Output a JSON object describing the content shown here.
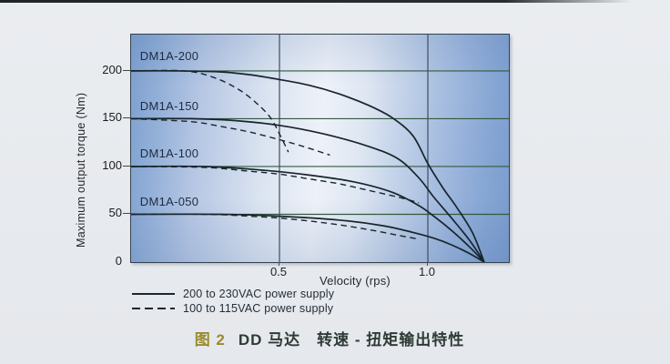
{
  "figure": {
    "caption": {
      "label": "图 2",
      "title": "DD 马达　转速 - 扭矩输出特性"
    }
  },
  "chart_data": {
    "type": "line",
    "xlabel": "Velocity (rps)",
    "ylabel": "Maximum output torque (Nm)",
    "xlim": [
      0,
      1.273
    ],
    "ylim": [
      0,
      238
    ],
    "grid": true,
    "xticks": [
      {
        "v": 0.5,
        "label": "0.5"
      },
      {
        "v": 1.0,
        "label": "1.0"
      }
    ],
    "yticks": [
      {
        "t": 200,
        "label": "200"
      },
      {
        "t": 150,
        "label": "150"
      },
      {
        "t": 100,
        "label": "100"
      },
      {
        "t": 50,
        "label": "50"
      },
      {
        "t": 0,
        "label": "0"
      }
    ],
    "colors": {
      "curve": "#18252c",
      "grid_h": "#33593f",
      "grid_v": "#3e4d61",
      "plot_border": "#35434f",
      "caption_label": "#9a8a2b"
    },
    "series": [
      {
        "name": "DM1A-200",
        "supply": "200 to 230VAC",
        "style": "solid",
        "points": [
          [
            0,
            200
          ],
          [
            0.15,
            200
          ],
          [
            0.3,
            199
          ],
          [
            0.4,
            196
          ],
          [
            0.5,
            191
          ],
          [
            0.6,
            185
          ],
          [
            0.7,
            176
          ],
          [
            0.8,
            164
          ],
          [
            0.88,
            151
          ],
          [
            0.95,
            132
          ],
          [
            1.0,
            103
          ],
          [
            1.05,
            78
          ],
          [
            1.1,
            56
          ],
          [
            1.15,
            31
          ],
          [
            1.19,
            0
          ]
        ]
      },
      {
        "name": "DM1A-150",
        "supply": "200 to 230VAC",
        "style": "solid",
        "points": [
          [
            0,
            150
          ],
          [
            0.2,
            150
          ],
          [
            0.35,
            148
          ],
          [
            0.5,
            143
          ],
          [
            0.65,
            134
          ],
          [
            0.8,
            121
          ],
          [
            0.9,
            108
          ],
          [
            0.97,
            88
          ],
          [
            1.02,
            68
          ],
          [
            1.08,
            46
          ],
          [
            1.14,
            23
          ],
          [
            1.19,
            0
          ]
        ]
      },
      {
        "name": "DM1A-100",
        "supply": "200 to 230VAC",
        "style": "solid",
        "points": [
          [
            0,
            100
          ],
          [
            0.25,
            100
          ],
          [
            0.45,
            96
          ],
          [
            0.6,
            91
          ],
          [
            0.75,
            84
          ],
          [
            0.88,
            73
          ],
          [
            0.97,
            59
          ],
          [
            1.02,
            48
          ],
          [
            1.08,
            33
          ],
          [
            1.14,
            16
          ],
          [
            1.19,
            0
          ]
        ]
      },
      {
        "name": "DM1A-050",
        "supply": "200 to 230VAC",
        "style": "solid",
        "points": [
          [
            0,
            50
          ],
          [
            0.3,
            50
          ],
          [
            0.5,
            48
          ],
          [
            0.7,
            44
          ],
          [
            0.85,
            38
          ],
          [
            0.95,
            31
          ],
          [
            1.02,
            25
          ],
          [
            1.08,
            18
          ],
          [
            1.14,
            9
          ],
          [
            1.19,
            0
          ]
        ]
      },
      {
        "name": "DM1A-200",
        "supply": "100 to 115VAC",
        "style": "dashed",
        "points": [
          [
            0,
            200
          ],
          [
            0.18,
            200
          ],
          [
            0.28,
            193
          ],
          [
            0.36,
            181
          ],
          [
            0.42,
            167
          ],
          [
            0.47,
            151
          ],
          [
            0.5,
            134
          ],
          [
            0.53,
            115
          ]
        ]
      },
      {
        "name": "DM1A-150",
        "supply": "100 to 115VAC",
        "style": "dashed",
        "points": [
          [
            0,
            150
          ],
          [
            0.2,
            147
          ],
          [
            0.3,
            142
          ],
          [
            0.4,
            136
          ],
          [
            0.5,
            128
          ],
          [
            0.58,
            121
          ],
          [
            0.67,
            112
          ]
        ]
      },
      {
        "name": "DM1A-100",
        "supply": "100 to 115VAC",
        "style": "dashed",
        "points": [
          [
            0,
            100
          ],
          [
            0.25,
            99
          ],
          [
            0.4,
            95
          ],
          [
            0.5,
            92
          ],
          [
            0.6,
            87
          ],
          [
            0.7,
            82
          ],
          [
            0.8,
            75
          ],
          [
            0.9,
            68
          ],
          [
            0.97,
            62
          ]
        ]
      },
      {
        "name": "DM1A-050",
        "supply": "100 to 115VAC",
        "style": "dashed",
        "points": [
          [
            0,
            50
          ],
          [
            0.25,
            50
          ],
          [
            0.4,
            48
          ],
          [
            0.5,
            46
          ],
          [
            0.6,
            43
          ],
          [
            0.7,
            39
          ],
          [
            0.8,
            34
          ],
          [
            0.9,
            28
          ],
          [
            0.97,
            24
          ]
        ]
      }
    ],
    "series_labels": [
      {
        "text": "DM1A-200",
        "v": 0.03,
        "t": 216
      },
      {
        "text": "DM1A-150",
        "v": 0.03,
        "t": 164
      },
      {
        "text": "DM1A-100",
        "v": 0.03,
        "t": 114
      },
      {
        "text": "DM1A-050",
        "v": 0.03,
        "t": 64
      }
    ],
    "legend": [
      {
        "style": "solid",
        "label": "200 to 230VAC power supply"
      },
      {
        "style": "dashed",
        "label": "100 to 115VAC power supply"
      }
    ],
    "legend_position": "bottom-left"
  }
}
